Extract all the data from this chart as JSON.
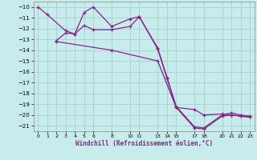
{
  "xlabel": "Windchill (Refroidissement éolien,°C)",
  "bg_color": "#c8ecec",
  "grid_color": "#a8d4d4",
  "line_color": "#882288",
  "line1_x": [
    0,
    1,
    3,
    4,
    5,
    6,
    8,
    10,
    11,
    13,
    14,
    15,
    17,
    18,
    20,
    21,
    22,
    23
  ],
  "line1_y": [
    -10.0,
    -10.7,
    -12.2,
    -12.5,
    -10.5,
    -10.0,
    -11.8,
    -11.1,
    -10.9,
    -13.8,
    -16.5,
    -19.2,
    -21.1,
    -21.2,
    -20.0,
    -19.8,
    -20.0,
    -20.1
  ],
  "line2_x": [
    2,
    3,
    4,
    5,
    6,
    8,
    10,
    11,
    13,
    14,
    15,
    17,
    18,
    20,
    21,
    22,
    23
  ],
  "line2_y": [
    -13.1,
    -12.4,
    -12.5,
    -11.7,
    -12.1,
    -12.1,
    -11.8,
    -10.9,
    -13.9,
    -16.6,
    -19.3,
    -21.2,
    -21.3,
    -20.1,
    -20.0,
    -20.1,
    -20.2
  ],
  "line3_x": [
    2,
    8,
    13,
    15,
    17,
    18,
    20,
    21,
    22,
    23
  ],
  "line3_y": [
    -13.2,
    -14.0,
    -15.0,
    -19.3,
    -19.5,
    -20.0,
    -19.9,
    -20.0,
    -20.1,
    -20.2
  ],
  "ylim": [
    -21.5,
    -9.5
  ],
  "xlim": [
    -0.5,
    23.5
  ],
  "yticks": [
    -10,
    -11,
    -12,
    -13,
    -14,
    -15,
    -16,
    -17,
    -18,
    -19,
    -20,
    -21
  ],
  "xtick_labels": [
    "0",
    "1",
    "2",
    "3",
    "4",
    "5",
    "6",
    "8",
    "10",
    "11",
    "13",
    "14",
    "15",
    "17",
    "18",
    "20",
    "21",
    "22",
    "23"
  ],
  "xtick_positions": [
    0,
    1,
    2,
    3,
    4,
    5,
    6,
    8,
    10,
    11,
    13,
    14,
    15,
    17,
    18,
    20,
    21,
    22,
    23
  ]
}
